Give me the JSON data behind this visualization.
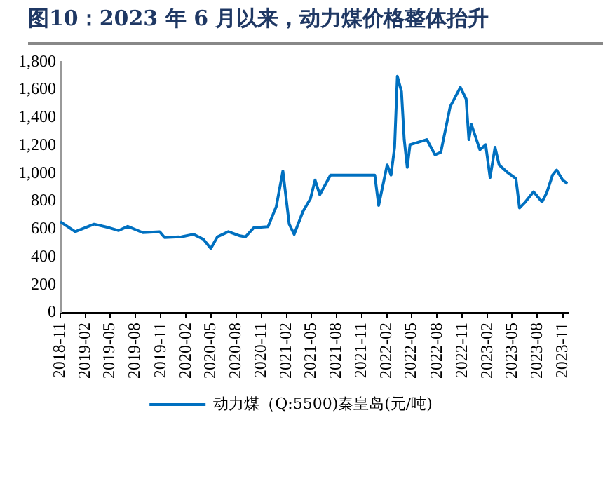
{
  "chart_data": {
    "type": "line",
    "title": "图10：2023 年 6 月以来，动力煤价格整体抬升",
    "x": [
      "2018-11-01",
      "2018-12-25",
      "2019-03-04",
      "2019-04-28",
      "2019-06-01",
      "2019-07-04",
      "2019-08-28",
      "2019-10-28",
      "2019-11-15",
      "2020-01-15",
      "2020-02-28",
      "2020-04-04",
      "2020-05-01",
      "2020-05-25",
      "2020-07-04",
      "2020-08-15",
      "2020-09-04",
      "2020-10-04",
      "2020-11-25",
      "2020-12-25",
      "2021-01-18",
      "2021-02-10",
      "2021-02-28",
      "2021-04-01",
      "2021-04-28",
      "2021-05-15",
      "2021-06-01",
      "2021-07-10",
      "2021-12-18",
      "2022-01-01",
      "2022-02-01",
      "2022-02-15",
      "2022-02-28",
      "2022-03-10",
      "2022-03-25",
      "2022-04-04",
      "2022-04-15",
      "2022-04-25",
      "2022-06-25",
      "2022-07-25",
      "2022-08-15",
      "2022-09-18",
      "2022-10-25",
      "2022-11-15",
      "2022-11-25",
      "2022-12-04",
      "2023-01-04",
      "2023-01-25",
      "2023-02-10",
      "2023-02-28",
      "2023-03-15",
      "2023-04-15",
      "2023-05-15",
      "2023-05-28",
      "2023-06-15",
      "2023-07-18",
      "2023-08-18",
      "2023-09-04",
      "2023-09-25",
      "2023-10-10",
      "2023-11-01",
      "2023-11-18"
    ],
    "series": [
      {
        "name": "动力煤（Q:5500)秦皇岛(元/吨)",
        "color": "#0070c0",
        "values": [
          654,
          582,
          636,
          610,
          590,
          620,
          575,
          582,
          540,
          545,
          563,
          527,
          462,
          545,
          582,
          552,
          545,
          610,
          618,
          763,
          1017,
          636,
          563,
          727,
          818,
          952,
          847,
          988,
          988,
          770,
          1061,
          988,
          1188,
          1697,
          1588,
          1243,
          1043,
          1206,
          1243,
          1134,
          1152,
          1479,
          1618,
          1534,
          1243,
          1352,
          1170,
          1206,
          970,
          1188,
          1061,
          1006,
          963,
          752,
          788,
          868,
          796,
          861,
          988,
          1024,
          952,
          927
        ]
      }
    ],
    "ylim": [
      0,
      1800
    ],
    "yticks": [
      0,
      {
        "value": 200,
        "label": "200"
      },
      {
        "value": 400,
        "label": "400"
      },
      {
        "value": 600,
        "label": "600"
      },
      {
        "value": 800,
        "label": "800"
      },
      {
        "value": 1000,
        "label": "1,000"
      },
      {
        "value": 1200,
        "label": "1,200"
      },
      {
        "value": 1400,
        "label": "1,400"
      },
      {
        "value": 1600,
        "label": "1,600"
      },
      {
        "value": 1800,
        "label": "1,800"
      }
    ],
    "xlim": [
      "2018-11-01",
      "2023-11-20"
    ],
    "xticks": [
      "2018-11",
      "2019-02",
      "2019-05",
      "2019-08",
      "2019-11",
      "2020-02",
      "2020-05",
      "2020-08",
      "2020-11",
      "2021-02",
      "2021-05",
      "2021-08",
      "2021-11",
      "2022-02",
      "2022-05",
      "2022-08",
      "2022-11",
      "2023-02",
      "2023-05",
      "2023-08",
      "2023-11"
    ],
    "grid": false,
    "legend": "bottom",
    "marker": "none",
    "line_style": "solid"
  }
}
